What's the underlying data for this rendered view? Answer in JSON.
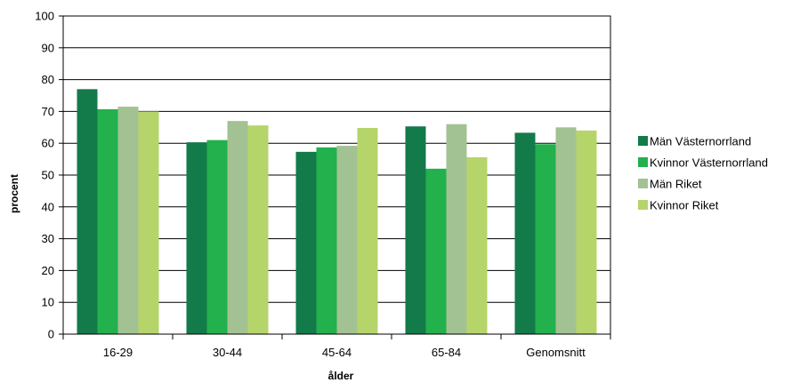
{
  "chart_data": {
    "type": "bar",
    "categories": [
      "16-29",
      "30-44",
      "45-64",
      "65-84",
      "Genomsnitt"
    ],
    "series": [
      {
        "name": "Män Västernorrland",
        "color": "#137a4a",
        "values": [
          77,
          60.3,
          57.3,
          65.3,
          63.3
        ]
      },
      {
        "name": "Kvinnor Västernorrland",
        "color": "#22b14c",
        "values": [
          70.7,
          61,
          58.7,
          52,
          59.7
        ]
      },
      {
        "name": "Män Riket",
        "color": "#a3c293",
        "values": [
          71.5,
          67,
          59.2,
          66,
          65
        ]
      },
      {
        "name": "Kvinnor Riket",
        "color": "#b5d56a",
        "values": [
          70,
          65.6,
          64.8,
          55.6,
          64
        ]
      }
    ],
    "yticks": [
      "0",
      "10",
      "20",
      "30",
      "40",
      "50",
      "60",
      "70",
      "80",
      "90",
      "100"
    ],
    "xlabel": "ålder",
    "ylabel": "procent",
    "ylim": [
      0,
      100
    ],
    "grid": true,
    "legend": "right"
  }
}
